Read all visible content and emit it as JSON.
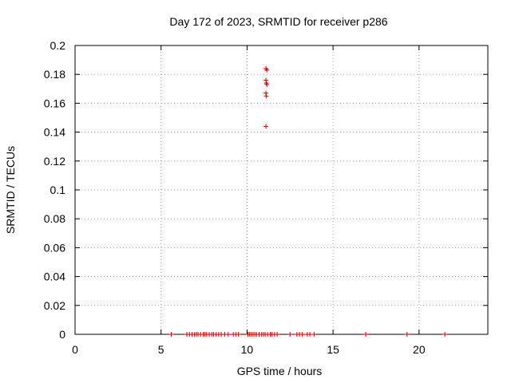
{
  "chart_data": {
    "type": "scatter",
    "title": "Day 172 of 2023, SRMTID for receiver p286",
    "xlabel": "GPS time / hours",
    "ylabel": "SRMTID / TECUs",
    "xlim": [
      0,
      24
    ],
    "ylim": [
      0,
      0.2
    ],
    "x_ticks": [
      0,
      5,
      10,
      15,
      20
    ],
    "x_tick_labels": [
      "0",
      "5",
      "10",
      "15",
      "20"
    ],
    "y_ticks": [
      0,
      0.02,
      0.04,
      0.06,
      0.08,
      0.1,
      0.12,
      0.14,
      0.16,
      0.18,
      0.2
    ],
    "y_tick_labels": [
      "0",
      "0.02",
      "0.04",
      "0.06",
      "0.08",
      "0.1",
      "0.12",
      "0.14",
      "0.16",
      "0.18",
      "0.2"
    ],
    "grid": true,
    "marker": "+",
    "color": "#cc0000",
    "series": [
      {
        "name": "SRMTID",
        "points": [
          [
            5.6,
            0
          ],
          [
            6.5,
            0
          ],
          [
            6.65,
            0
          ],
          [
            6.8,
            0
          ],
          [
            6.95,
            0
          ],
          [
            7.05,
            0
          ],
          [
            7.15,
            0
          ],
          [
            7.3,
            0
          ],
          [
            7.45,
            0
          ],
          [
            7.55,
            0
          ],
          [
            7.65,
            0
          ],
          [
            7.8,
            0
          ],
          [
            7.95,
            0
          ],
          [
            8.05,
            0
          ],
          [
            8.2,
            0
          ],
          [
            8.35,
            0
          ],
          [
            8.5,
            0
          ],
          [
            8.7,
            0
          ],
          [
            8.9,
            0
          ],
          [
            9.2,
            0
          ],
          [
            9.35,
            0
          ],
          [
            9.5,
            0
          ],
          [
            10.05,
            0
          ],
          [
            10.15,
            0
          ],
          [
            10.25,
            0
          ],
          [
            10.35,
            0
          ],
          [
            10.45,
            0
          ],
          [
            10.55,
            0
          ],
          [
            10.7,
            0
          ],
          [
            10.85,
            0
          ],
          [
            10.95,
            0
          ],
          [
            11.05,
            0
          ],
          [
            11.2,
            0
          ],
          [
            11.35,
            0
          ],
          [
            11.45,
            0
          ],
          [
            11.6,
            0
          ],
          [
            11.75,
            0
          ],
          [
            12.5,
            0
          ],
          [
            12.9,
            0
          ],
          [
            13.05,
            0
          ],
          [
            13.2,
            0
          ],
          [
            13.5,
            0
          ],
          [
            13.65,
            0
          ],
          [
            13.9,
            0
          ],
          [
            16.9,
            0
          ],
          [
            19.3,
            0
          ],
          [
            21.5,
            0
          ],
          [
            11.1,
            0.184
          ],
          [
            11.15,
            0.183
          ],
          [
            11.1,
            0.176
          ],
          [
            11.12,
            0.174
          ],
          [
            11.15,
            0.173
          ],
          [
            11.1,
            0.167
          ],
          [
            11.12,
            0.165
          ],
          [
            11.1,
            0.144
          ]
        ]
      }
    ]
  }
}
